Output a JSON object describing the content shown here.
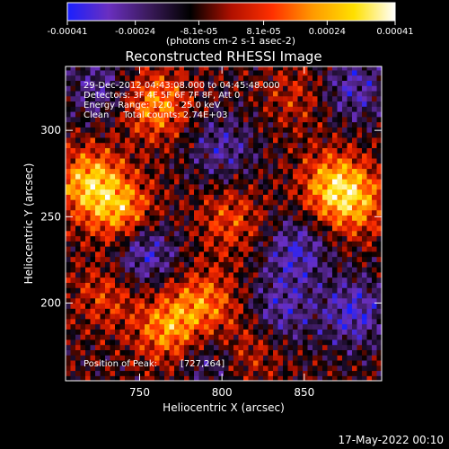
{
  "chart_data": {
    "type": "heatmap",
    "title": "Reconstructed RHESSI Image",
    "xlabel": "Heliocentric X (arcsec)",
    "ylabel": "Heliocentric Y (arcsec)",
    "xlim": [
      705,
      897
    ],
    "ylim": [
      155,
      337
    ],
    "x_ticks": [
      750,
      800,
      850
    ],
    "x_tick_labels": [
      "750",
      "800",
      "850"
    ],
    "y_ticks": [
      200,
      250,
      300
    ],
    "y_tick_labels": [
      "200",
      "250",
      "300"
    ],
    "colorbar": {
      "min": -0.00041,
      "max": 0.00041,
      "ticks": [
        -0.00041,
        -0.00024,
        -8.1e-05,
        8.1e-05,
        0.00024,
        0.00041
      ],
      "tick_labels": [
        "-0.00041",
        "-0.00024",
        "-8.1e-05",
        "8.1e-05",
        "0.00024",
        "0.00041"
      ],
      "unit": "(photons cm-2 s-1 asec-2)",
      "stops": [
        "#1a20ff",
        "#6a2fc0",
        "#3a1a5a",
        "#000000",
        "#b01000",
        "#ff3000",
        "#ff9a00",
        "#ffe000",
        "#ffffff"
      ]
    },
    "annotations": [
      "29-Dec-2012 04:43:08.000 to 04:45:48.000",
      "Detectors: 3F 4F 5F 6F 7F 8F, Att 0",
      "Energy Range: 12.0 - 25.0 keV",
      "Clean     Total counts: 2.74E+03"
    ],
    "peak": {
      "label": "Position of Peak:",
      "value": "[727,264]",
      "x": 727,
      "y": 264
    },
    "hotspots": [
      {
        "x": 720,
        "y": 270,
        "value": 0.00036
      },
      {
        "x": 740,
        "y": 252,
        "value": 0.0003
      },
      {
        "x": 760,
        "y": 315,
        "value": 0.00028
      },
      {
        "x": 868,
        "y": 268,
        "value": 0.00032
      },
      {
        "x": 882,
        "y": 258,
        "value": 0.00022
      },
      {
        "x": 805,
        "y": 248,
        "value": 0.00018
      },
      {
        "x": 768,
        "y": 185,
        "value": 0.0003
      },
      {
        "x": 790,
        "y": 200,
        "value": 0.00024
      },
      {
        "x": 730,
        "y": 205,
        "value": 0.00016
      },
      {
        "x": 818,
        "y": 175,
        "value": 0.00014
      },
      {
        "x": 845,
        "y": 320,
        "value": 0.00012
      }
    ],
    "coldspots": [
      {
        "x": 752,
        "y": 230,
        "value": -0.00026
      },
      {
        "x": 845,
        "y": 230,
        "value": -0.00022
      },
      {
        "x": 880,
        "y": 195,
        "value": -0.00024
      },
      {
        "x": 800,
        "y": 290,
        "value": -0.00018
      },
      {
        "x": 835,
        "y": 195,
        "value": -0.0002
      },
      {
        "x": 725,
        "y": 325,
        "value": -0.00016
      },
      {
        "x": 880,
        "y": 325,
        "value": -0.0002
      },
      {
        "x": 790,
        "y": 170,
        "value": -0.00015
      }
    ]
  },
  "footer": {
    "date": "17-May-2022 00:10"
  }
}
